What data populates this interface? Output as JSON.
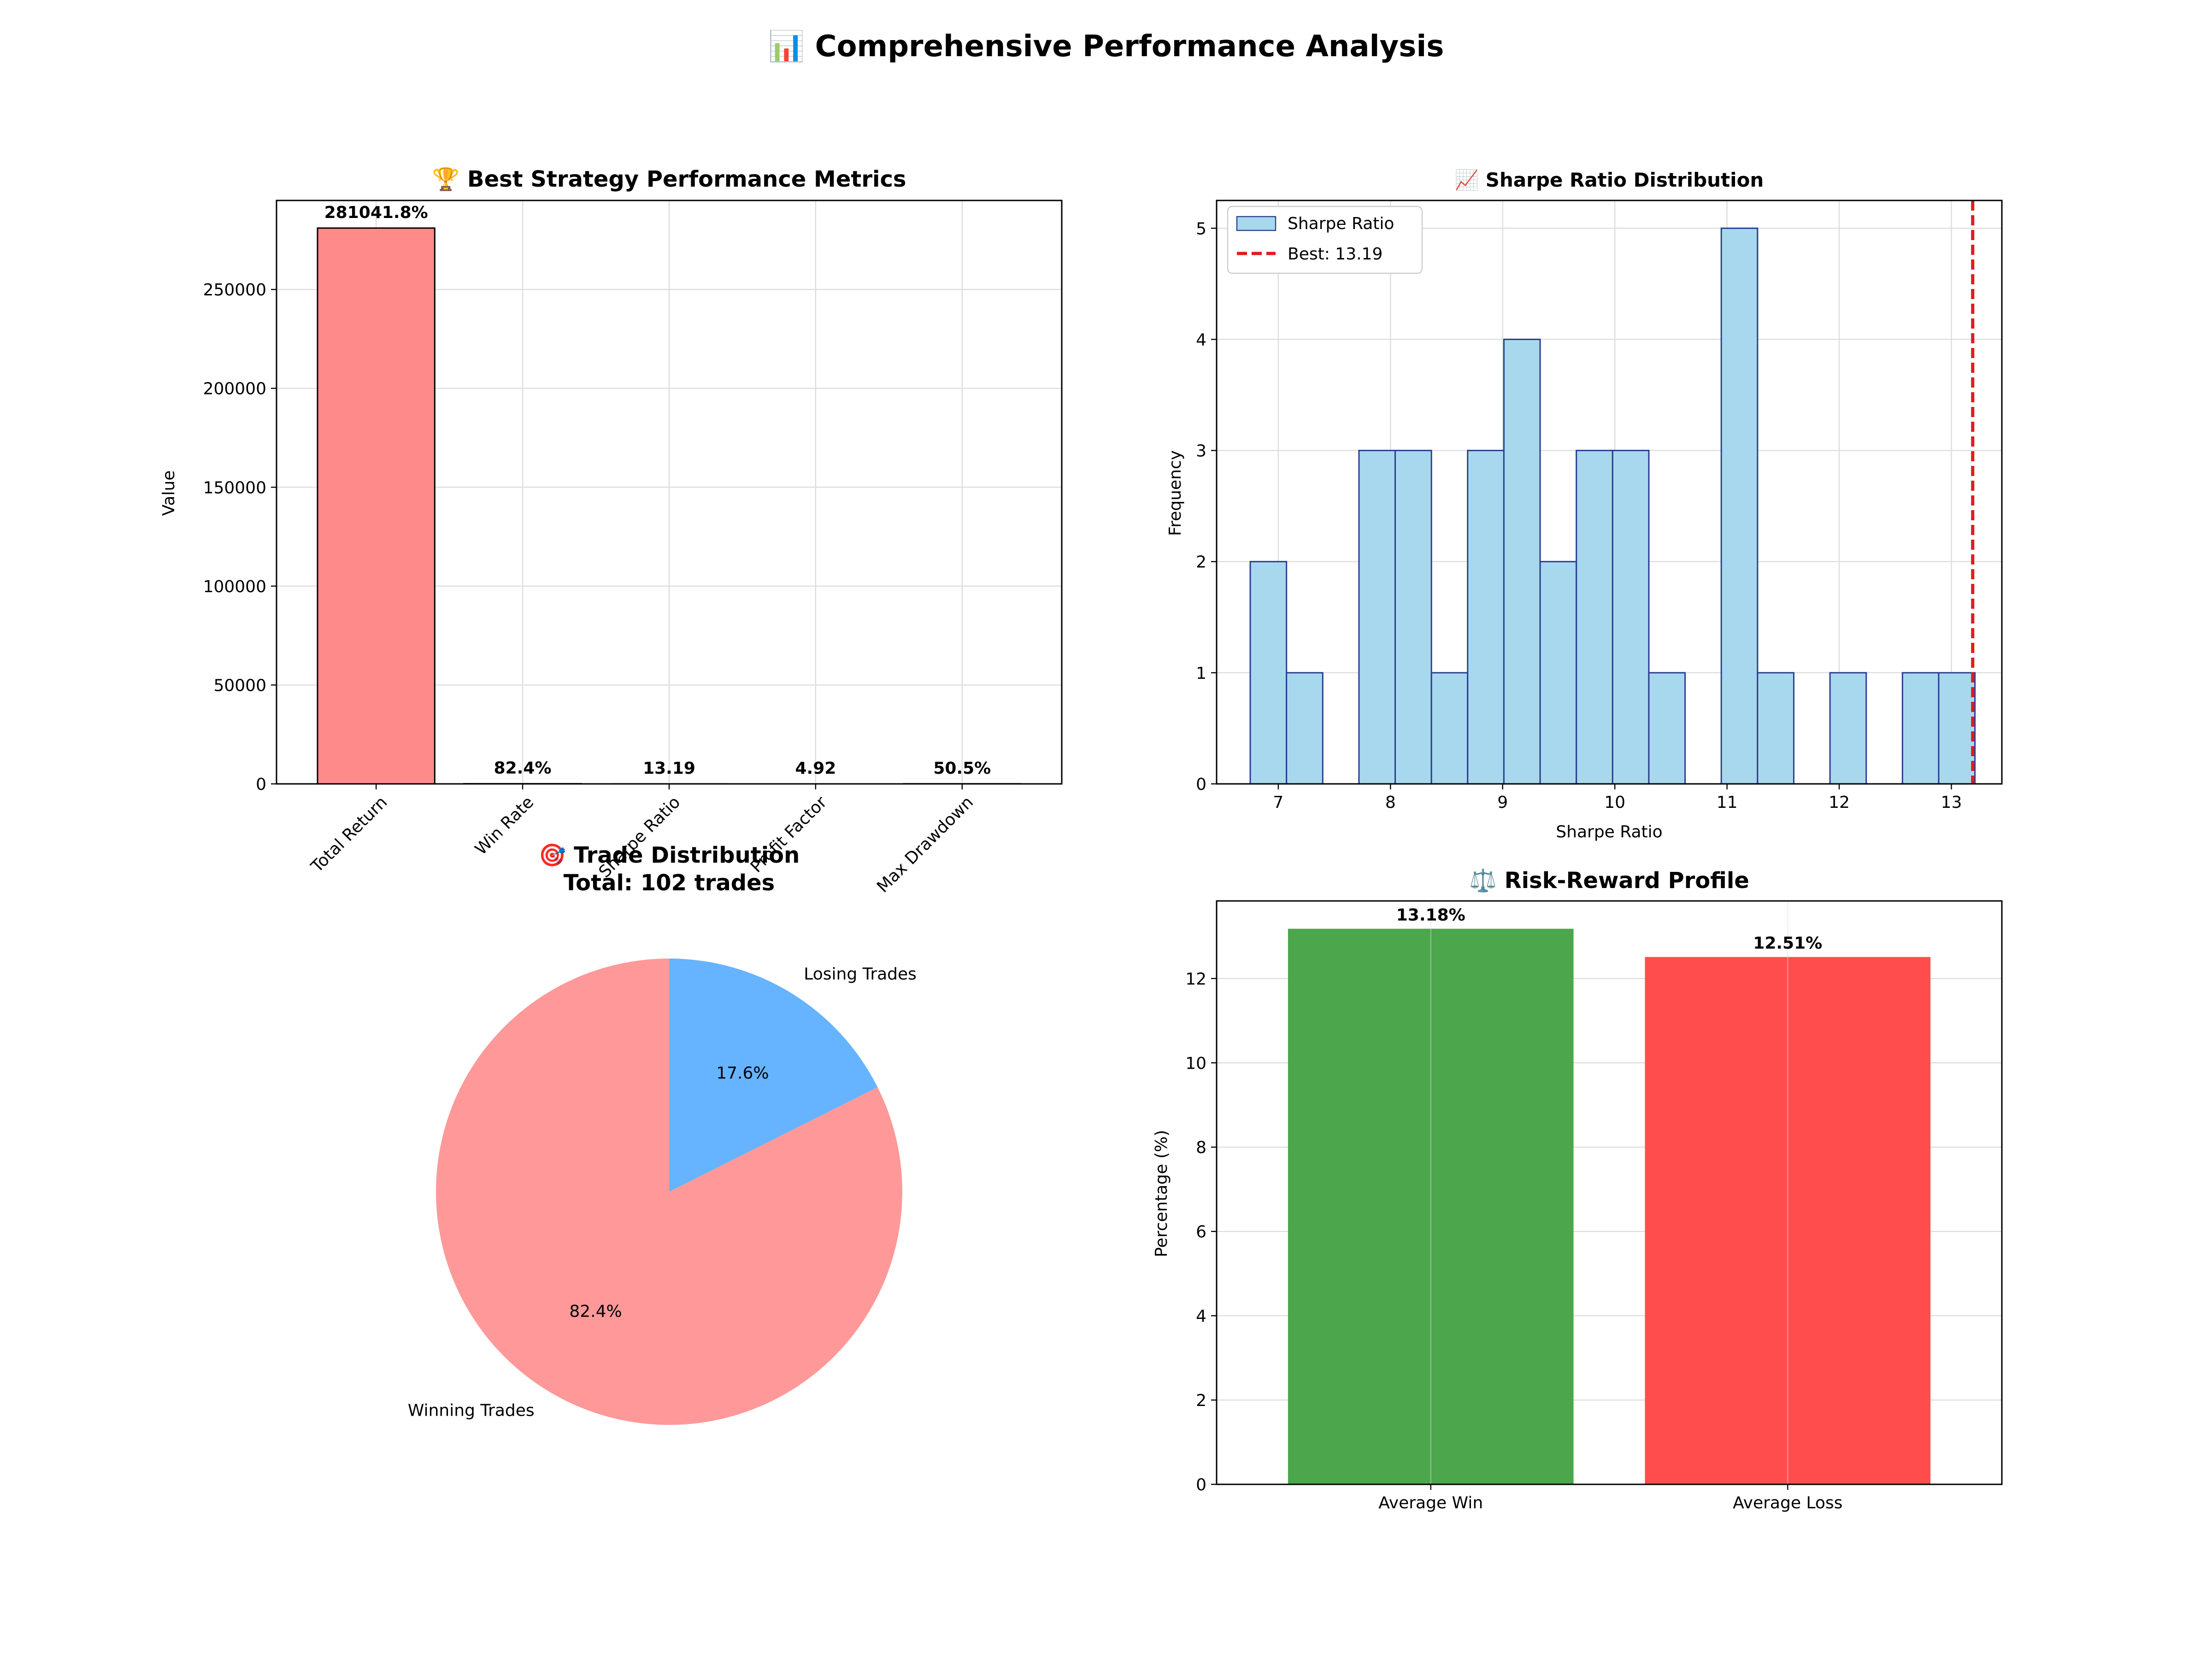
{
  "suptitle": "📊 Comprehensive Performance Analysis",
  "chart_data": [
    {
      "type": "bar",
      "title": "🏆 Best Strategy Performance Metrics",
      "xlabel": "",
      "ylabel": "Value",
      "categories": [
        "Total Return",
        "Win Rate",
        "Sharpe Ratio",
        "Profit Factor",
        "Max Drawdown"
      ],
      "values": [
        281041.8,
        82.4,
        13.19,
        4.92,
        50.5
      ],
      "value_labels": [
        "281041.8%",
        "82.4%",
        "13.19",
        "4.92",
        "50.5%"
      ],
      "ylim": [
        0,
        295000
      ],
      "yticks": [
        0,
        50000,
        100000,
        150000,
        200000,
        250000
      ],
      "bar_colors": [
        "#ff8a8a",
        "#4ecdc4",
        "#45b7d1",
        "#96ceb4",
        "#ffeaa7"
      ],
      "grid": true
    },
    {
      "type": "bar",
      "subtype": "histogram",
      "title": "📈 Sharpe Ratio Distribution",
      "xlabel": "Sharpe Ratio",
      "ylabel": "Frequency",
      "bin_start": 6.75,
      "bin_width": 0.323,
      "counts": [
        2,
        1,
        0,
        3,
        3,
        1,
        3,
        4,
        2,
        3,
        3,
        1,
        0,
        5,
        1,
        0,
        1,
        0,
        1,
        1
      ],
      "xlim": [
        6.45,
        13.45
      ],
      "ylim": [
        0,
        5.25
      ],
      "xticks": [
        7,
        8,
        9,
        10,
        11,
        12,
        13
      ],
      "yticks": [
        0,
        1,
        2,
        3,
        4,
        5
      ],
      "best_value": 13.19,
      "legend": {
        "position": "top-left",
        "entries": [
          "Sharpe Ratio",
          "Best: 13.19"
        ]
      },
      "bar_color": "#a8d8ee",
      "edge_color": "#2a3f8f",
      "line_color": "#e31a1c",
      "grid": true
    },
    {
      "type": "pie",
      "title": "🎯 Trade Distribution",
      "subtitle": "Total: 102 trades",
      "slices": [
        {
          "label": "Winning Trades",
          "value": 82.4,
          "pct_label": "82.4%",
          "color": "#ff9999"
        },
        {
          "label": "Losing Trades",
          "value": 17.6,
          "pct_label": "17.6%",
          "color": "#66b3ff"
        }
      ]
    },
    {
      "type": "bar",
      "title": "⚖️ Risk-Reward Profile",
      "xlabel": "",
      "ylabel": "Percentage (%)",
      "categories": [
        "Average Win",
        "Average Loss"
      ],
      "values": [
        13.18,
        12.51
      ],
      "value_labels": [
        "13.18%",
        "12.51%"
      ],
      "ylim": [
        0,
        13.84
      ],
      "yticks": [
        0,
        2,
        4,
        6,
        8,
        10,
        12
      ],
      "bar_colors": [
        "#4ca64c",
        "#ff4d4d"
      ],
      "grid": true
    }
  ]
}
